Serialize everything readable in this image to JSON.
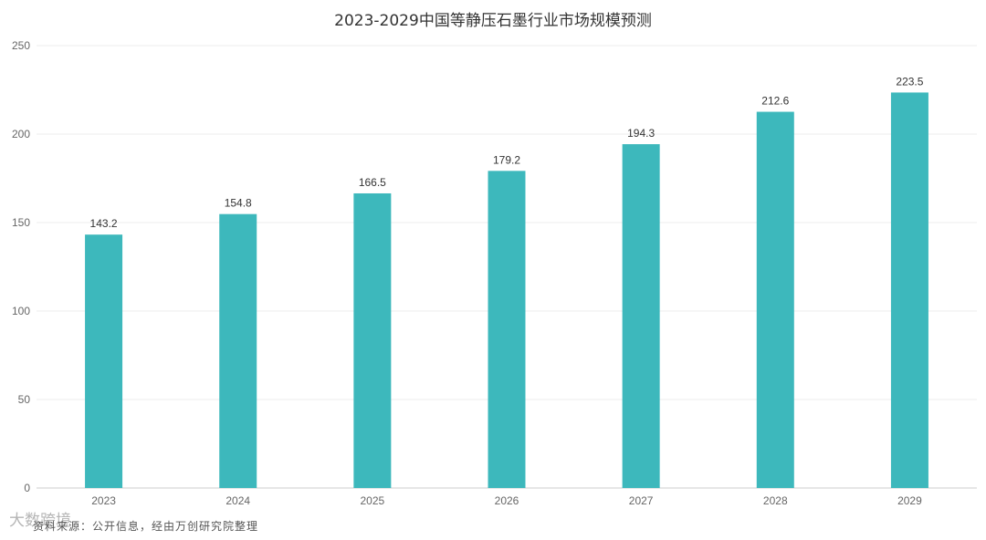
{
  "chart_data": {
    "type": "bar",
    "title": "2023-2029中国等静压石墨行业市场规模预测",
    "categories": [
      "2023",
      "2024",
      "2025",
      "2026",
      "2027",
      "2028",
      "2029"
    ],
    "values": [
      143.2,
      154.8,
      166.5,
      179.2,
      194.3,
      212.6,
      223.5
    ],
    "ylim": [
      0,
      250
    ],
    "yticks": [
      0,
      50,
      100,
      150,
      200,
      250
    ],
    "bar_color": "#3db8bc",
    "grid": true
  },
  "source_note": "资料来源：公开信息，经由万创研究院整理",
  "watermark": "大数跨境"
}
